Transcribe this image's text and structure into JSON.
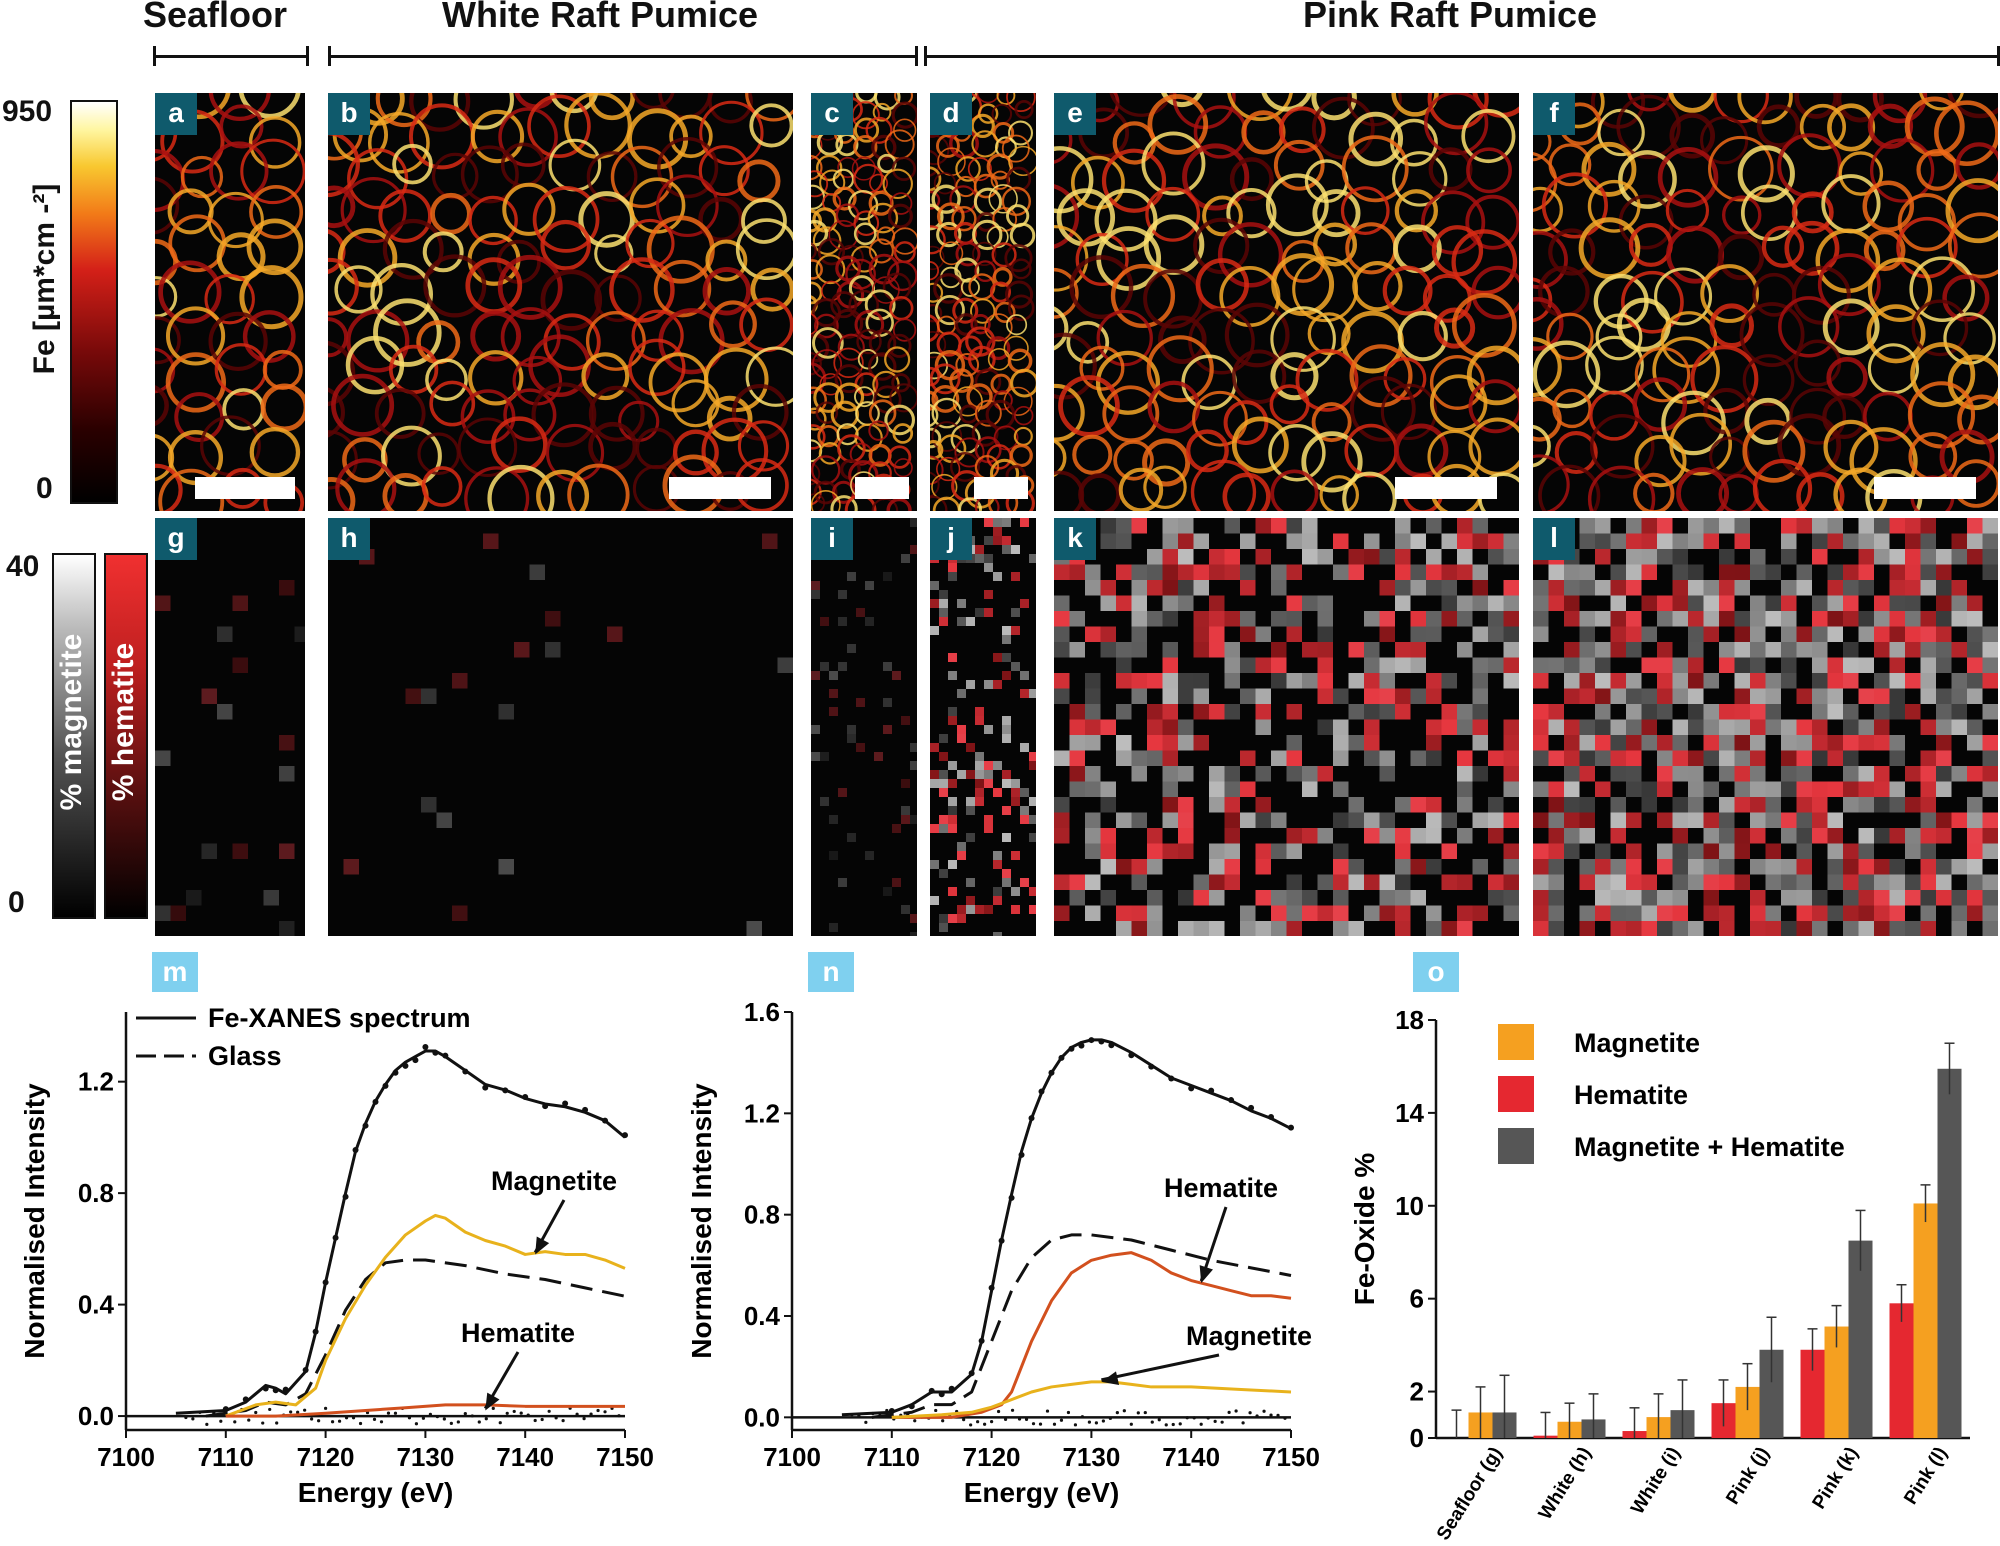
{
  "headers": {
    "seafloor": "Seafloor",
    "white": "White Raft Pumice",
    "pink": "Pink Raft Pumice"
  },
  "fe_colorbar": {
    "max": "950",
    "min": "0",
    "label": "Fe [µm*cm -²]"
  },
  "oxide_colorbar": {
    "max": "40",
    "min": "0",
    "magnetite_label": "% magnetite",
    "hematite_label": "% hematite"
  },
  "fe_maps": [
    {
      "label": "a",
      "sample": "Seafloor"
    },
    {
      "label": "b",
      "sample": "White"
    },
    {
      "label": "c",
      "sample": "White"
    },
    {
      "label": "d",
      "sample": "Pink"
    },
    {
      "label": "e",
      "sample": "Pink"
    },
    {
      "label": "f",
      "sample": "Pink"
    }
  ],
  "oxide_maps": [
    {
      "label": "g",
      "density": 0.06
    },
    {
      "label": "h",
      "density": 0.02
    },
    {
      "label": "i",
      "density": 0.08
    },
    {
      "label": "j",
      "density": 0.25
    },
    {
      "label": "k",
      "density": 0.55
    },
    {
      "label": "l",
      "density": 0.75
    }
  ],
  "colors": {
    "fit_line": "#111111",
    "magnetite_spectrum": "#e8b21c",
    "hematite_spectrum": "#d2501e",
    "magnetite_bar": "#f5a020",
    "hematite_bar": "#e52830",
    "combined_bar": "#565656",
    "panel_label_bg": "#0f5a6c",
    "bottom_label_bg": "#7fd0ef"
  },
  "chart_data": [
    {
      "panel": "m",
      "type": "line",
      "xlabel": "Energy (eV)",
      "ylabel": "Normalised Intensity",
      "xlim": [
        7100,
        7150
      ],
      "ylim": [
        -0.05,
        1.45
      ],
      "xticks": [
        "7100",
        "7110",
        "7120",
        "7130",
        "7140",
        "7150"
      ],
      "yticks": [
        "0.0",
        "0.4",
        "0.8",
        "1.2"
      ],
      "ytick_values": [
        0.0,
        0.4,
        0.8,
        1.2
      ],
      "legend": [
        "Fe-XANES spectrum",
        "Glass"
      ],
      "annotations": [
        {
          "text": "Magnetite",
          "target": [
            7141,
            0.58
          ]
        },
        {
          "text": "Hematite",
          "target": [
            7136,
            0.02
          ]
        }
      ],
      "series": [
        {
          "name": "Fe-XANES spectrum",
          "style": "solid",
          "x": [
            7105,
            7110,
            7112,
            7114,
            7115,
            7116,
            7118,
            7119,
            7120,
            7121,
            7122,
            7123,
            7124,
            7125,
            7126,
            7127,
            7128,
            7129,
            7130,
            7131,
            7132,
            7134,
            7136,
            7138,
            7140,
            7142,
            7144,
            7146,
            7148,
            7150
          ],
          "y": [
            0.01,
            0.02,
            0.05,
            0.11,
            0.1,
            0.08,
            0.16,
            0.3,
            0.48,
            0.64,
            0.8,
            0.95,
            1.05,
            1.13,
            1.19,
            1.24,
            1.27,
            1.29,
            1.31,
            1.31,
            1.29,
            1.24,
            1.19,
            1.17,
            1.14,
            1.12,
            1.11,
            1.09,
            1.06,
            1.0
          ]
        },
        {
          "name": "Glass",
          "style": "dashed",
          "x": [
            7108,
            7112,
            7114,
            7116,
            7118,
            7120,
            7122,
            7124,
            7126,
            7128,
            7130,
            7134,
            7138,
            7142,
            7146,
            7150
          ],
          "y": [
            0.0,
            0.02,
            0.05,
            0.04,
            0.08,
            0.22,
            0.38,
            0.49,
            0.55,
            0.56,
            0.56,
            0.54,
            0.51,
            0.49,
            0.46,
            0.43
          ]
        },
        {
          "name": "Magnetite",
          "style": "solid",
          "x": [
            7110,
            7113,
            7115,
            7117,
            7119,
            7120,
            7122,
            7124,
            7126,
            7128,
            7130,
            7131,
            7132,
            7134,
            7136,
            7138,
            7140,
            7142,
            7144,
            7146,
            7148,
            7150
          ],
          "y": [
            0.0,
            0.04,
            0.05,
            0.04,
            0.1,
            0.2,
            0.35,
            0.47,
            0.57,
            0.65,
            0.7,
            0.72,
            0.71,
            0.66,
            0.63,
            0.61,
            0.58,
            0.59,
            0.58,
            0.58,
            0.56,
            0.53
          ]
        },
        {
          "name": "Hematite",
          "style": "solid",
          "x": [
            7110,
            7115,
            7120,
            7124,
            7128,
            7132,
            7136,
            7140,
            7145,
            7150
          ],
          "y": [
            0.0,
            0.0,
            0.01,
            0.02,
            0.03,
            0.04,
            0.04,
            0.035,
            0.035,
            0.035
          ]
        }
      ]
    },
    {
      "panel": "n",
      "type": "line",
      "xlabel": "Energy (eV)",
      "ylabel": "Normalised Intensity",
      "xlim": [
        7100,
        7150
      ],
      "ylim": [
        -0.05,
        1.6
      ],
      "xticks": [
        "7100",
        "7110",
        "7120",
        "7130",
        "7140",
        "7150"
      ],
      "yticks": [
        "0.0",
        "0.4",
        "0.8",
        "1.2",
        "1.6"
      ],
      "ytick_values": [
        0.0,
        0.4,
        0.8,
        1.2,
        1.6
      ],
      "annotations": [
        {
          "text": "Hematite",
          "target": [
            7141,
            0.53
          ]
        },
        {
          "text": "Magnetite",
          "target": [
            7131,
            0.14
          ]
        }
      ],
      "series": [
        {
          "name": "Fe-XANES spectrum",
          "style": "solid",
          "x": [
            7105,
            7110,
            7112,
            7114,
            7115,
            7116,
            7118,
            7119,
            7120,
            7121,
            7122,
            7123,
            7124,
            7125,
            7126,
            7127,
            7128,
            7129,
            7130,
            7131,
            7132,
            7134,
            7136,
            7138,
            7140,
            7142,
            7144,
            7146,
            7148,
            7150
          ],
          "y": [
            0.01,
            0.02,
            0.05,
            0.1,
            0.1,
            0.1,
            0.17,
            0.3,
            0.5,
            0.7,
            0.88,
            1.05,
            1.18,
            1.28,
            1.36,
            1.42,
            1.46,
            1.48,
            1.49,
            1.49,
            1.48,
            1.44,
            1.39,
            1.34,
            1.31,
            1.28,
            1.25,
            1.21,
            1.18,
            1.14
          ]
        },
        {
          "name": "Glass",
          "style": "dashed",
          "x": [
            7108,
            7112,
            7114,
            7116,
            7118,
            7120,
            7122,
            7124,
            7126,
            7128,
            7130,
            7134,
            7138,
            7142,
            7146,
            7150
          ],
          "y": [
            0.0,
            0.02,
            0.05,
            0.05,
            0.1,
            0.3,
            0.5,
            0.63,
            0.7,
            0.72,
            0.72,
            0.7,
            0.66,
            0.62,
            0.59,
            0.56
          ]
        },
        {
          "name": "Hematite",
          "style": "solid",
          "x": [
            7110,
            7116,
            7119,
            7121,
            7122,
            7124,
            7126,
            7128,
            7130,
            7132,
            7134,
            7136,
            7138,
            7140,
            7142,
            7144,
            7146,
            7148,
            7150
          ],
          "y": [
            0.0,
            0.0,
            0.02,
            0.05,
            0.1,
            0.3,
            0.46,
            0.57,
            0.62,
            0.64,
            0.65,
            0.62,
            0.57,
            0.54,
            0.52,
            0.5,
            0.48,
            0.48,
            0.47
          ]
        },
        {
          "name": "Magnetite",
          "style": "solid",
          "x": [
            7110,
            7115,
            7118,
            7120,
            7122,
            7124,
            7126,
            7128,
            7130,
            7132,
            7134,
            7136,
            7140,
            7145,
            7150
          ],
          "y": [
            0.0,
            0.01,
            0.02,
            0.04,
            0.07,
            0.1,
            0.12,
            0.13,
            0.14,
            0.14,
            0.13,
            0.12,
            0.12,
            0.11,
            0.1
          ]
        }
      ]
    },
    {
      "panel": "o",
      "type": "bar",
      "ylabel": "Fe-Oxide %",
      "ylim": [
        0,
        18
      ],
      "yticks": [
        "0",
        "2",
        "6",
        "10",
        "14",
        "18"
      ],
      "ytick_values": [
        0,
        2,
        6,
        10,
        14,
        18
      ],
      "categories": [
        "Seafloor (g)",
        "White (h)",
        "White (i)",
        "Pink (j)",
        "Pink (k)",
        "Pink (l)"
      ],
      "series": [
        {
          "name": "Hematite",
          "values": [
            0.0,
            0.1,
            0.3,
            1.5,
            3.8,
            5.8
          ],
          "errors": [
            1.2,
            1.0,
            1.0,
            1.0,
            0.9,
            0.8
          ]
        },
        {
          "name": "Magnetite",
          "values": [
            1.1,
            0.7,
            0.9,
            2.2,
            4.8,
            10.1
          ],
          "errors": [
            1.1,
            0.8,
            1.0,
            1.0,
            0.9,
            0.8
          ]
        },
        {
          "name": "Magnetite + Hematite",
          "values": [
            1.1,
            0.8,
            1.2,
            3.8,
            8.5,
            15.9
          ],
          "errors": [
            1.6,
            1.1,
            1.3,
            1.4,
            1.3,
            1.1
          ]
        }
      ],
      "legend": [
        "Magnetite",
        "Hematite",
        "Magnetite + Hematite"
      ]
    }
  ],
  "bottom_labels": [
    "m",
    "n",
    "o"
  ]
}
